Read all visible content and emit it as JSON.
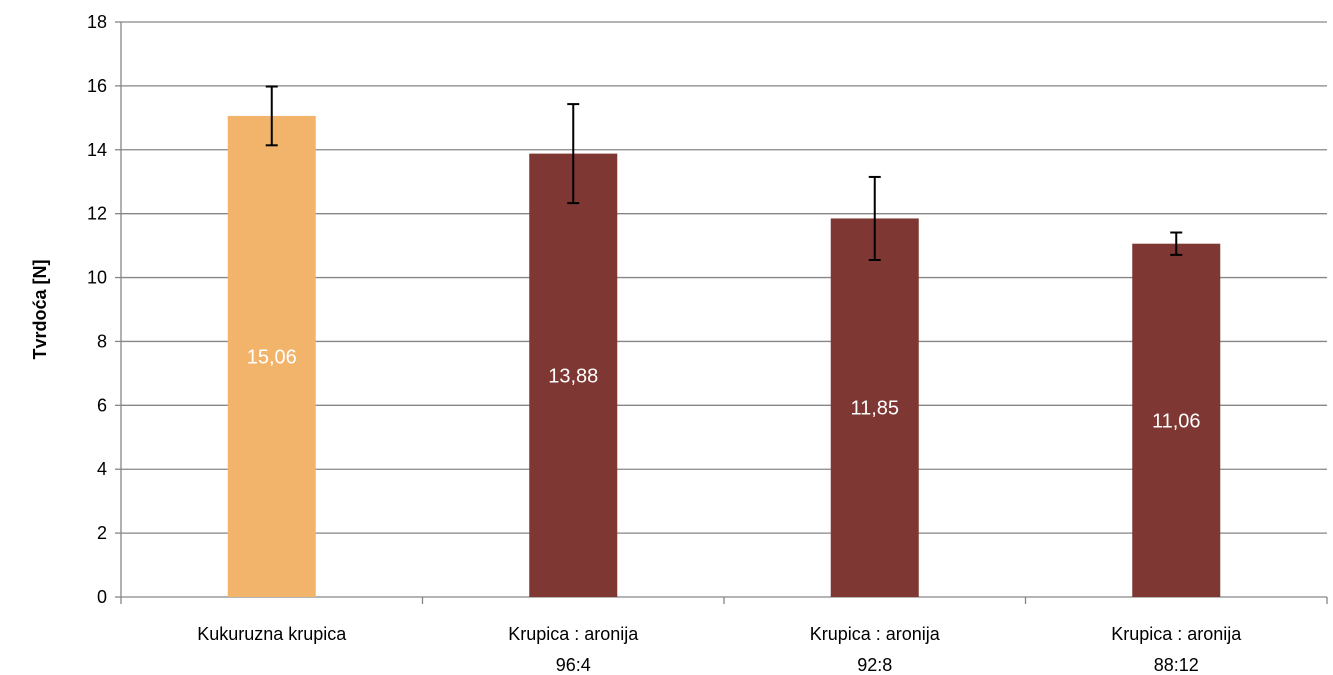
{
  "chart_data": {
    "type": "bar",
    "title": "",
    "xlabel": "",
    "ylabel": "Tvrdoća [N]",
    "ylim": [
      0,
      18
    ],
    "yticks": [
      0,
      2,
      4,
      6,
      8,
      10,
      12,
      14,
      16,
      18
    ],
    "grid": true,
    "categories": [
      [
        "Kukuruzna krupica"
      ],
      [
        "Krupica : aronija",
        "96:4"
      ],
      [
        "Krupica : aronija",
        "92:8"
      ],
      [
        "Krupica : aronija",
        "88:12"
      ]
    ],
    "values": [
      15.06,
      13.88,
      11.85,
      11.06
    ],
    "value_labels": [
      "15,06",
      "13,88",
      "11,85",
      "11,06"
    ],
    "error_bars": [
      0.92,
      1.55,
      1.3,
      0.35
    ],
    "colors": [
      "#F2B46B",
      "#7E3732",
      "#7E3732",
      "#7E3732"
    ]
  }
}
